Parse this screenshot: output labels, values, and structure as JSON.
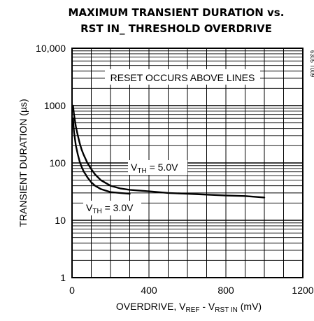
{
  "chart_data": {
    "type": "line",
    "title": "MAXIMUM TRANSIENT DURATION vs.",
    "subtitle": "RST IN_ THRESHOLD OVERDRIVE",
    "figure_id": "6305 T009",
    "xlabel": {
      "pre": "OVERDRIVE, V",
      "sub1": "REF",
      "mid": " - V",
      "sub2": "RST IN",
      "post": " (mV)"
    },
    "ylabel": "TRANSIENT DURATION (µs)",
    "xlim": [
      0,
      1200
    ],
    "ylim": [
      1,
      10000
    ],
    "yscale": "log",
    "grid": true,
    "x_ticks": [
      0,
      400,
      800,
      1200
    ],
    "x_tick_labels": [
      "0",
      "400",
      "800",
      "1200"
    ],
    "y_ticks": [
      1,
      10,
      100,
      1000,
      10000
    ],
    "y_tick_labels": [
      "1",
      "10",
      "100",
      "1000",
      "10,000"
    ],
    "annotation": "RESET OCCURS ABOVE LINES",
    "series": [
      {
        "name": "VTH = 5.0V",
        "label": {
          "pre": "V",
          "sub": "TH",
          "post": " = 5.0V"
        },
        "x": [
          5,
          10,
          20,
          30,
          40,
          50,
          60,
          80,
          100,
          120,
          150,
          200,
          250,
          300,
          400,
          500,
          600,
          700,
          800,
          900,
          1000
        ],
        "y": [
          1000,
          700,
          430,
          300,
          220,
          170,
          140,
          100,
          78,
          63,
          50,
          40,
          36,
          34,
          32,
          30,
          29,
          28,
          27,
          26.5,
          25
        ]
      },
      {
        "name": "VTH = 3.0V",
        "label": {
          "pre": "V",
          "sub": "TH",
          "post": " = 3.0V"
        },
        "x": [
          5,
          10,
          20,
          30,
          40,
          50,
          60,
          80,
          100,
          120,
          150,
          200,
          250,
          300
        ],
        "y": [
          600,
          350,
          200,
          140,
          105,
          85,
          72,
          56,
          46,
          40,
          35,
          31,
          30,
          29
        ]
      }
    ]
  }
}
